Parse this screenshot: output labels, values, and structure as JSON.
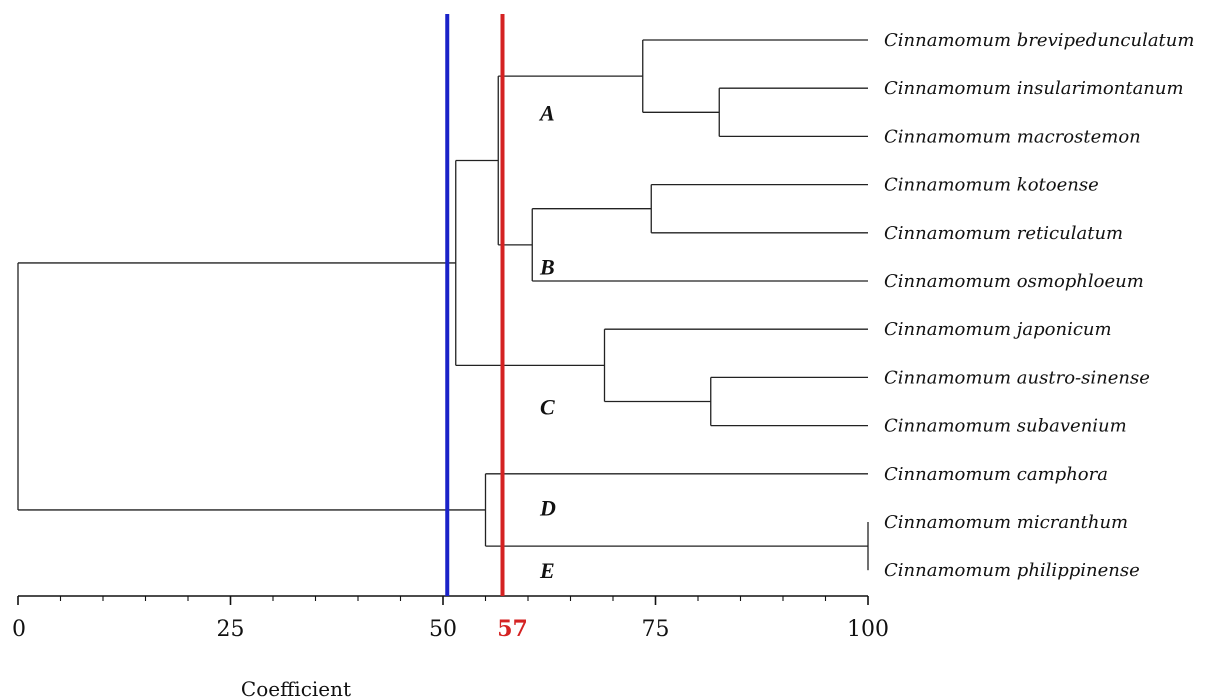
{
  "dendrogram": {
    "leaves": [
      "Cinnamomum brevipedunculatum",
      "Cinnamomum insularimontanum",
      "Cinnamomum macrostemon",
      "Cinnamomum kotoense",
      "Cinnamomum reticulatum",
      "Cinnamomum osmophloeum",
      "Cinnamomum japonicum",
      "Cinnamomum austro-sinense",
      "Cinnamomum subavenium",
      "Cinnamomum camphora",
      "Cinnamomum micranthum",
      "Cinnamomum philippinense"
    ],
    "merges": [
      {
        "a": 1,
        "b": 2,
        "coefficient": 82.5
      },
      {
        "a": 0,
        "b": "m0",
        "coefficient": 73.5
      },
      {
        "a": 3,
        "b": 4,
        "coefficient": 74.5
      },
      {
        "a": "m2",
        "b": 5,
        "coefficient": 60.5
      },
      {
        "a": "m1",
        "b": "m3",
        "coefficient": 56.5
      },
      {
        "a": 7,
        "b": 8,
        "coefficient": 81.5
      },
      {
        "a": 6,
        "b": "m5",
        "coefficient": 69.0
      },
      {
        "a": "m4",
        "b": "m6",
        "coefficient": 51.5
      },
      {
        "a": 10,
        "b": 11,
        "coefficient": 100
      },
      {
        "a": 9,
        "b": "m8",
        "coefficient": 55.0
      },
      {
        "a": "m7",
        "b": "m9",
        "coefficient": 0
      }
    ],
    "clusters": [
      {
        "label": "A",
        "anchor_leaf": 1.5
      },
      {
        "label": "B",
        "anchor_leaf": 4.7
      },
      {
        "label": "C",
        "anchor_leaf": 7.6
      },
      {
        "label": "D",
        "anchor_leaf": 9.7
      },
      {
        "label": "E",
        "anchor_leaf": 11.0
      }
    ],
    "axis": {
      "title": "Coefficient",
      "min": 0,
      "max": 100,
      "major_ticks": [
        0,
        25,
        50,
        75,
        100
      ],
      "minor_step": 5
    },
    "cut_lines": [
      {
        "value": 50.5,
        "color": "#1a22c8",
        "label": ""
      },
      {
        "value": 57,
        "color": "#d42222",
        "label": "57"
      }
    ],
    "line_color": "#222222"
  }
}
